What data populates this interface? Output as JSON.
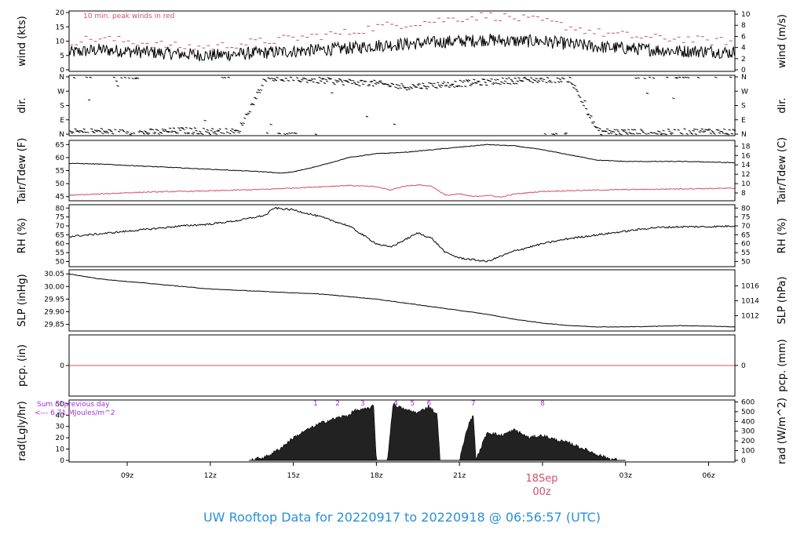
{
  "chart_data": {
    "type": "line",
    "colors": {
      "black": "#000000",
      "red": "#d0506a",
      "purple": "#a030d8",
      "blue": "#2a8fd8"
    },
    "footer": "UW Rooftop Data for 20220917  to  20220918 @ 06:56:57  (UTC)",
    "x_range_hours": [
      6.9,
      30.95
    ],
    "x_ticks": [
      {
        "h": 9,
        "label": "09z"
      },
      {
        "h": 12,
        "label": "12z"
      },
      {
        "h": 15,
        "label": "15z"
      },
      {
        "h": 18,
        "label": "18z"
      },
      {
        "h": 21,
        "label": "21z"
      },
      {
        "h": 27,
        "label": "03z"
      },
      {
        "h": 30,
        "label": "06z"
      }
    ],
    "date_marker": {
      "h": 24,
      "day": "18Sep",
      "time": "00z"
    },
    "panels": [
      {
        "id": "wind",
        "ylabel_left": "wind (kts)",
        "ylabel_right": "wind (m/s)",
        "ylim": [
          0,
          20
        ],
        "ticks_left": [
          0,
          5,
          10,
          15,
          20
        ],
        "ticks_right": [
          0,
          2,
          4,
          6,
          8,
          10
        ],
        "right_factor": 1.944,
        "note": "10 min. peak winds in red",
        "series": [
          {
            "name": "wind",
            "x": [
              6.9,
              8,
              9,
              10,
              11,
              12,
              13,
              14,
              15,
              16,
              17,
              18,
              19,
              20,
              21,
              22,
              23,
              24,
              25,
              26,
              27,
              28,
              29,
              30,
              30.95
            ],
            "y": [
              6,
              7,
              6.5,
              6,
              5.5,
              5,
              5.5,
              6,
              6.5,
              7,
              7.5,
              8.5,
              9,
              9.5,
              10,
              10.5,
              10,
              10,
              9,
              8,
              7.5,
              7,
              6.5,
              6.5,
              6
            ]
          },
          {
            "name": "peak",
            "x": [
              7,
              8,
              9,
              10,
              11,
              12,
              13,
              14,
              15,
              16,
              17,
              18,
              19,
              20,
              21,
              22,
              23,
              24,
              25,
              26,
              27,
              28,
              29,
              30,
              30.9
            ],
            "y": [
              10,
              11,
              10,
              9,
              8,
              8,
              9,
              10,
              11,
              12,
              13,
              15,
              16,
              17,
              18,
              19,
              18,
              17,
              15,
              13,
              12,
              11,
              11,
              10,
              10
            ]
          }
        ]
      },
      {
        "id": "dir",
        "ylabel_left": "dir.",
        "ylabel_right": "dir.",
        "ylim": [
          0,
          360
        ],
        "ticks_left": [
          "N",
          "E",
          "S",
          "W",
          "N"
        ],
        "ticks_right": [
          "N",
          "E",
          "S",
          "W",
          "N"
        ],
        "series": [
          {
            "name": "dir",
            "x": [
              7,
              8,
              9,
              10,
              11,
              12,
              13,
              14,
              15,
              16,
              17,
              18,
              19,
              20,
              21,
              22,
              23,
              24,
              25,
              26,
              27,
              28,
              29,
              30,
              30.9
            ],
            "y": [
              15,
              20,
              10,
              15,
              25,
              20,
              15,
              355,
              350,
              340,
              330,
              320,
              300,
              310,
              320,
              330,
              340,
              345,
              350,
              20,
              15,
              10,
              15,
              20,
              15
            ]
          }
        ]
      },
      {
        "id": "temp",
        "ylabel_left": "Tair/Tdew (F)",
        "ylabel_right": "Tair/Tdew (C)",
        "ylim": [
          44,
          66
        ],
        "ticks_left": [
          45,
          50,
          55,
          60,
          65
        ],
        "ticks_right": [
          8,
          10,
          12,
          14,
          16,
          18
        ],
        "series": [
          {
            "name": "Tair",
            "x": [
              6.9,
              8,
              9,
              10,
              11,
              12,
              13,
              14,
              14.5,
              15,
              16,
              17,
              18,
              19,
              20,
              21,
              22,
              23,
              24,
              25,
              26,
              27,
              28,
              29,
              30,
              30.95
            ],
            "y": [
              57.8,
              57.5,
              57,
              56.5,
              56,
              55.5,
              55,
              54.5,
              54,
              54.5,
              57,
              60,
              61.5,
              62,
              63,
              64,
              65,
              64.5,
              63,
              61,
              59,
              58.5,
              58.5,
              58.5,
              58.3,
              58
            ]
          },
          {
            "name": "Tdew",
            "x": [
              6.9,
              8,
              9,
              10,
              11,
              12,
              13,
              14,
              15,
              16,
              17,
              18,
              18.5,
              19,
              19.5,
              20,
              20.5,
              21,
              21.5,
              22,
              22.5,
              23,
              24,
              25,
              26,
              27,
              28,
              29,
              30,
              30.95
            ],
            "y": [
              45.5,
              46,
              46.5,
              46.8,
              47,
              47.2,
              47.5,
              47.8,
              48.3,
              48.8,
              49.3,
              48.8,
              47.5,
              49,
              49.5,
              49,
              45.5,
              46,
              45,
              45.5,
              44.8,
              46,
              47,
              47.3,
              47.5,
              47.7,
              47.8,
              48,
              48.1,
              48.2
            ]
          }
        ]
      },
      {
        "id": "rh",
        "ylabel_left": "RH (%)",
        "ylabel_right": "RH (%)",
        "ylim": [
          48,
          81
        ],
        "ticks_left": [
          50,
          55,
          60,
          65,
          70,
          75,
          80
        ],
        "ticks_right": [
          50,
          55,
          60,
          65,
          70,
          75,
          80
        ],
        "series": [
          {
            "name": "RH",
            "x": [
              6.9,
              8,
              9,
              10,
              11,
              12,
              13,
              14,
              14.3,
              15,
              15.5,
              16,
              17,
              17.5,
              18,
              18.5,
              19,
              19.5,
              20,
              20.5,
              21,
              21.5,
              22,
              22.5,
              23,
              24,
              25,
              26,
              27,
              28,
              29,
              30,
              30.95
            ],
            "y": [
              64,
              65.5,
              67,
              68.5,
              70,
              71,
              73,
              76,
              80,
              79,
              77,
              75,
              70,
              65,
              60,
              58,
              62,
              66,
              63,
              55,
              52,
              51,
              50,
              53,
              56,
              60,
              63,
              65,
              67,
              69,
              69.5,
              69.5,
              70
            ]
          }
        ]
      },
      {
        "id": "slp",
        "ylabel_left": "SLP (inHg)",
        "ylabel_right": "SLP (hPa)",
        "ylim": [
          29.83,
          30.06
        ],
        "ticks_left": [
          29.85,
          29.9,
          29.95,
          30.0,
          30.05
        ],
        "ticks_right": [
          1012,
          1014,
          1016
        ],
        "series": [
          {
            "name": "SLP",
            "x": [
              6.9,
              8,
              9,
              10,
              11,
              12,
              13,
              14,
              15,
              16,
              17,
              18,
              19,
              20,
              21,
              22,
              23,
              24,
              25,
              26,
              27,
              28,
              29,
              30,
              30.95
            ],
            "y": [
              30.05,
              30.03,
              30.02,
              30.01,
              30.0,
              29.99,
              29.985,
              29.98,
              29.975,
              29.97,
              29.96,
              29.95,
              29.935,
              29.92,
              29.905,
              29.89,
              29.87,
              29.855,
              29.845,
              29.84,
              29.84,
              29.842,
              29.845,
              29.843,
              29.84
            ]
          }
        ]
      },
      {
        "id": "pcp",
        "ylabel_left": "pcp. (in)",
        "ylabel_right": "pcp. (mm)",
        "ylim": [
          -1,
          1
        ],
        "ticks_left": [
          0
        ],
        "ticks_right": [
          0
        ],
        "series": [
          {
            "name": "pcp",
            "x": [
              6.9,
              30.95
            ],
            "y": [
              0,
              0
            ]
          }
        ]
      },
      {
        "id": "rad",
        "ylabel_left": "rad(Lgly/hr)",
        "ylabel_right": "rad (W/m^2)",
        "ylim": [
          0,
          52
        ],
        "ticks_left": [
          0,
          10,
          20,
          30,
          40,
          50
        ],
        "ticks_right": [
          0,
          100,
          200,
          300,
          400,
          500,
          600
        ],
        "right_factor": 0.0861,
        "sum_note": "Sum of previous day",
        "sum_value": "<--- 6.71 MJoules/m^2",
        "hour_marks": [
          {
            "h": 15.8,
            "label": "1"
          },
          {
            "h": 16.6,
            "label": "2"
          },
          {
            "h": 17.5,
            "label": "3"
          },
          {
            "h": 18.7,
            "label": "4"
          },
          {
            "h": 19.3,
            "label": "5"
          },
          {
            "h": 19.9,
            "label": "6"
          },
          {
            "h": 21.5,
            "label": "7"
          },
          {
            "h": 24.0,
            "label": "8"
          }
        ],
        "series": [
          {
            "name": "rad",
            "x": [
              13.4,
              14,
              14.5,
              15,
              15.5,
              16,
              16.5,
              17,
              17.2,
              17.6,
              17.9,
              18.0,
              18.4,
              18.6,
              19,
              19.5,
              19.9,
              20.2,
              20.3,
              21.0,
              21.3,
              21.5,
              21.6,
              22,
              22.5,
              23,
              23.5,
              24,
              24.5,
              25,
              25.5,
              26,
              26.5,
              27
            ],
            "y": [
              0,
              3,
              10,
              20,
              27,
              33,
              37,
              40,
              44,
              45,
              48,
              0,
              0,
              50,
              45,
              42,
              48,
              40,
              0,
              0,
              30,
              40,
              0,
              25,
              22,
              27,
              20,
              22,
              18,
              15,
              10,
              5,
              1,
              0
            ]
          }
        ]
      }
    ]
  }
}
